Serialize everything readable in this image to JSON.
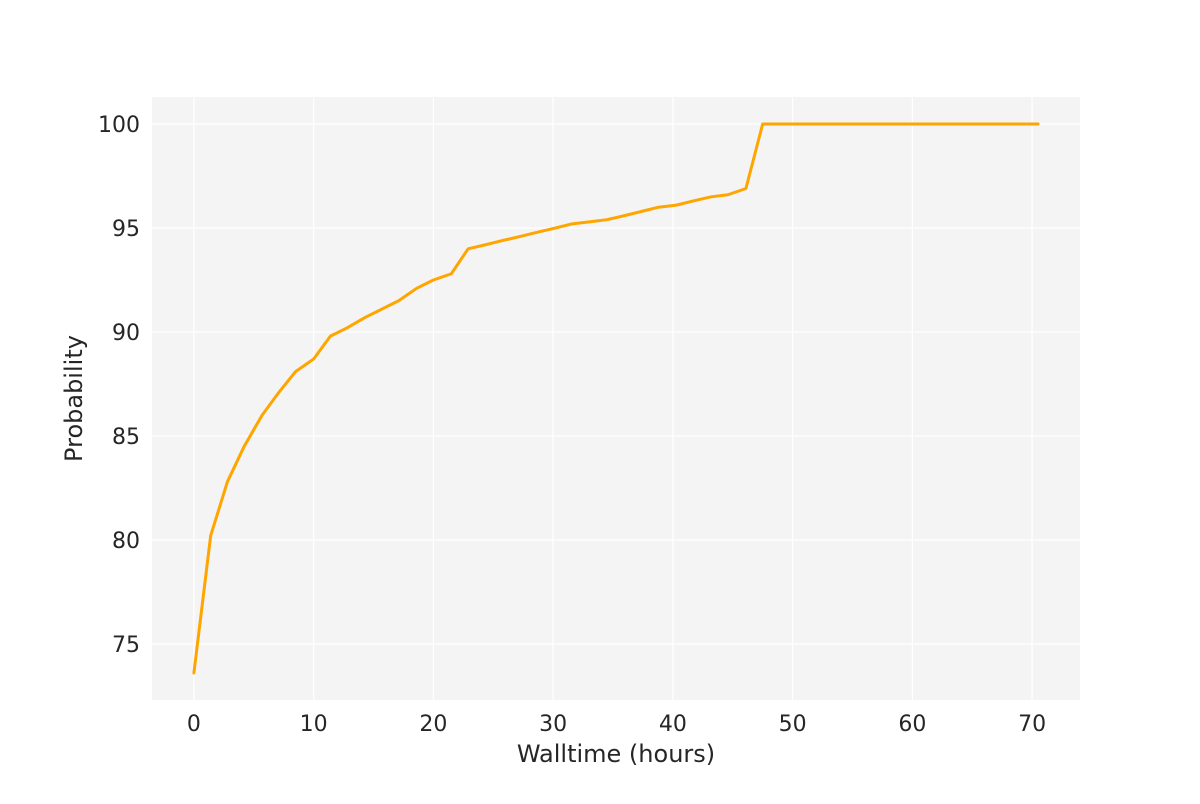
{
  "chart_data": {
    "type": "line",
    "title": "",
    "xlabel": "Walltime (hours)",
    "ylabel": "Probability",
    "xlim": [
      -3.5,
      74
    ],
    "ylim": [
      72.3,
      101.3
    ],
    "xticks": [
      0,
      10,
      20,
      30,
      40,
      50,
      60,
      70
    ],
    "yticks": [
      75,
      80,
      85,
      90,
      95,
      100
    ],
    "xtick_labels": [
      "0",
      "10",
      "20",
      "30",
      "40",
      "50",
      "60",
      "70"
    ],
    "ytick_labels": [
      "75",
      "80",
      "85",
      "90",
      "95",
      "100"
    ],
    "grid": true,
    "legend": false,
    "background_color": "#f4f4f4",
    "grid_color": "#ffffff",
    "series": [
      {
        "color": "#ffa500",
        "x": [
          0.0,
          1.4,
          2.8,
          4.2,
          5.7,
          7.1,
          8.5,
          10.0,
          11.4,
          12.8,
          14.3,
          15.7,
          17.1,
          18.6,
          20.0,
          21.5,
          22.9,
          24.4,
          25.8,
          27.3,
          28.7,
          30.2,
          31.6,
          33.1,
          34.5,
          36.0,
          37.4,
          38.8,
          40.3,
          41.7,
          43.2,
          44.6,
          46.1,
          47.5,
          49.0,
          52.0,
          55.0,
          58.0,
          61.0,
          64.0,
          67.0,
          70.5
        ],
        "y": [
          73.6,
          80.2,
          82.8,
          84.5,
          86.0,
          87.1,
          88.1,
          88.7,
          89.8,
          90.2,
          90.7,
          91.1,
          91.5,
          92.1,
          92.5,
          92.8,
          94.0,
          94.2,
          94.4,
          94.6,
          94.8,
          95.0,
          95.2,
          95.3,
          95.4,
          95.6,
          95.8,
          96.0,
          96.1,
          96.3,
          96.5,
          96.6,
          96.9,
          100.0,
          100.0,
          100.0,
          100.0,
          100.0,
          100.0,
          100.0,
          100.0,
          100.0
        ]
      }
    ]
  }
}
